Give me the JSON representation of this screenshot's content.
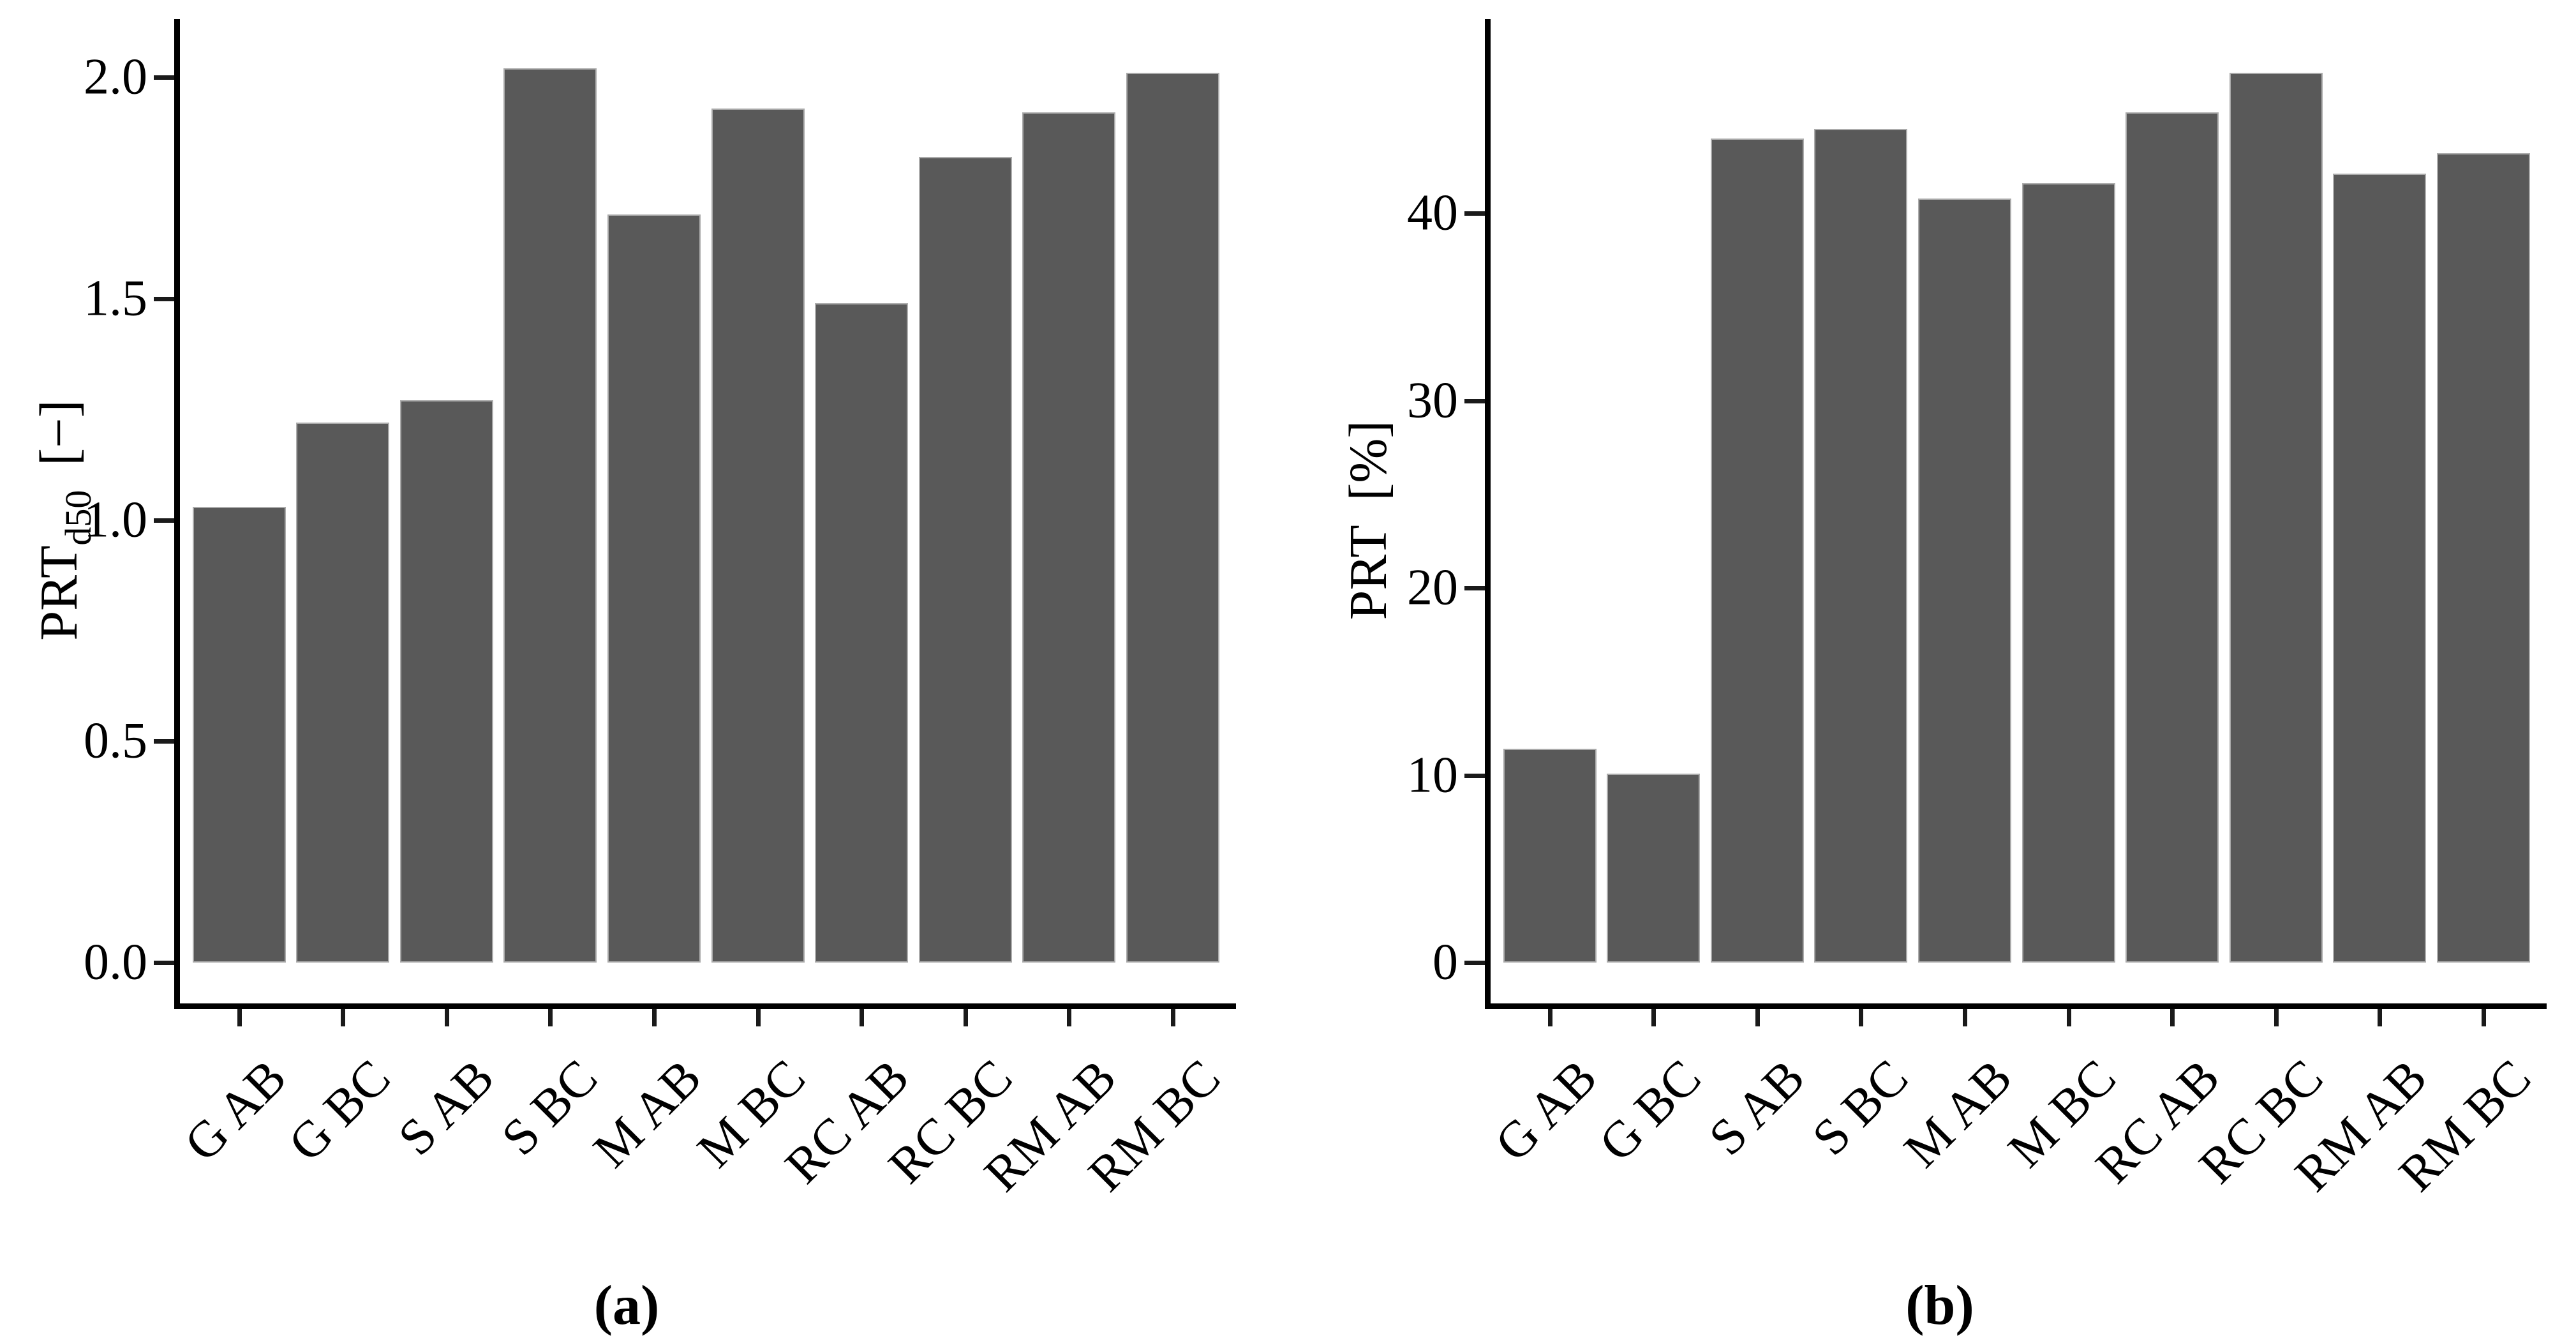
{
  "figure": {
    "background": "#ffffff",
    "bar_fill": "#595959",
    "bar_border": "#ababab",
    "axis_color": "#000000",
    "captions": {
      "a": "(a)",
      "b": "(b)"
    }
  },
  "chart_data": [
    {
      "id": "a",
      "type": "bar",
      "title": "",
      "categories": [
        "G AB",
        "G BC",
        "S AB",
        "S BC",
        "M AB",
        "M BC",
        "RC AB",
        "RC BC",
        "RM AB",
        "RM BC"
      ],
      "values": [
        1.03,
        1.22,
        1.27,
        2.02,
        1.69,
        1.93,
        1.49,
        1.82,
        1.92,
        2.01
      ],
      "xlabel": "",
      "ylabel": "PRT_d50 [−]",
      "ylabel_main": "PRT",
      "ylabel_sub": "d50",
      "ylabel_unit": "[−]",
      "yticks": [
        0.0,
        0.5,
        1.0,
        1.5,
        2.0
      ],
      "ytick_labels": [
        "0.0",
        "0.5",
        "1.0",
        "1.5",
        "2.0"
      ],
      "ylim": [
        0,
        2.12
      ],
      "grid": false,
      "legend": "none",
      "caption": "(a)"
    },
    {
      "id": "b",
      "type": "bar",
      "title": "",
      "categories": [
        "G AB",
        "G BC",
        "S AB",
        "S BC",
        "M AB",
        "M BC",
        "RC AB",
        "RC BC",
        "RM AB",
        "RM BC"
      ],
      "values": [
        11.4,
        10.1,
        44.0,
        44.5,
        40.8,
        41.6,
        45.4,
        47.5,
        42.1,
        43.2
      ],
      "xlabel": "",
      "ylabel": "PRT [%]",
      "ylabel_main": "PRT",
      "ylabel_sub": "",
      "ylabel_unit": "[%]",
      "yticks": [
        0,
        10,
        20,
        30,
        40
      ],
      "ytick_labels": [
        "0",
        "10",
        "20",
        "30",
        "40"
      ],
      "ylim": [
        0,
        50.2
      ],
      "grid": false,
      "legend": "none",
      "caption": "(b)"
    }
  ]
}
